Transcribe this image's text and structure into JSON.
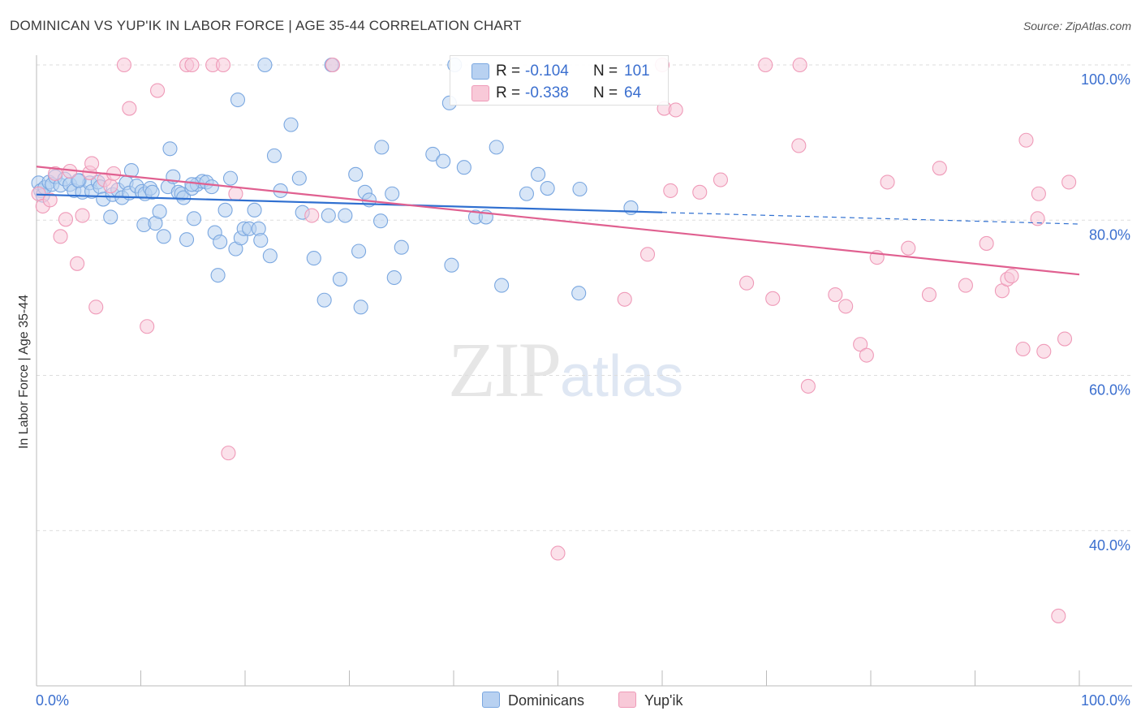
{
  "chart_data": {
    "type": "scatter",
    "title": "DOMINICAN VS YUP'IK IN LABOR FORCE | AGE 35-44 CORRELATION CHART",
    "source": "Source: ZipAtlas.com",
    "ylabel": "In Labor Force | Age 35-44",
    "xlabel": "",
    "xlim": [
      0,
      100
    ],
    "ylim": [
      20,
      100
    ],
    "x_tick_labels": {
      "left": "0.0%",
      "right": "100.0%"
    },
    "y_ticks": [
      {
        "value": 100,
        "label": "100.0%"
      },
      {
        "value": 80,
        "label": "80.0%"
      },
      {
        "value": 60,
        "label": "60.0%"
      },
      {
        "value": 40,
        "label": "40.0%"
      }
    ],
    "watermark": {
      "zip": "ZIP",
      "atlas": "atlas"
    },
    "legend": [
      {
        "r_label": "R =",
        "r_value": "-0.104",
        "n_label": "N =",
        "n_value": "101"
      },
      {
        "r_label": "R =",
        "r_value": "-0.338",
        "n_label": "N =",
        "n_value": "64"
      }
    ],
    "series": [
      {
        "name": "Dominicans",
        "color": "#7aa7e0",
        "fill": "#b8d1f1",
        "line_color": "#2f6fd0",
        "trend": {
          "x0": 0,
          "y0": 83.3,
          "x1": 60,
          "y1": 81.0,
          "dash_to_x": 100,
          "dash_to_y": 79.5
        },
        "points": [
          [
            0.2,
            84.8
          ],
          [
            0.4,
            83.8
          ],
          [
            0.6,
            83.2
          ],
          [
            0.8,
            84.2
          ],
          [
            1.2,
            84.9
          ],
          [
            1.5,
            84.6
          ],
          [
            1.8,
            85.6
          ],
          [
            2.3,
            84.5
          ],
          [
            2.7,
            85.3
          ],
          [
            3.2,
            84.6
          ],
          [
            3.6,
            83.8
          ],
          [
            4.1,
            85.1
          ],
          [
            4.4,
            83.6
          ],
          [
            5.1,
            84.8
          ],
          [
            5.3,
            83.7
          ],
          [
            5.9,
            84.9
          ],
          [
            6.1,
            84.3
          ],
          [
            6.4,
            82.7
          ],
          [
            7.1,
            80.4
          ],
          [
            7.3,
            83.3
          ],
          [
            7.8,
            83.9
          ],
          [
            8.2,
            82.9
          ],
          [
            8.6,
            84.8
          ],
          [
            8.9,
            83.5
          ],
          [
            9.1,
            86.4
          ],
          [
            9.6,
            84.4
          ],
          [
            10.1,
            83.7
          ],
          [
            10.4,
            83.4
          ],
          [
            10.3,
            79.4
          ],
          [
            10.9,
            84.1
          ],
          [
            11.1,
            83.6
          ],
          [
            11.4,
            79.6
          ],
          [
            11.8,
            81.1
          ],
          [
            12.2,
            77.9
          ],
          [
            12.6,
            84.3
          ],
          [
            12.8,
            89.2
          ],
          [
            13.1,
            85.6
          ],
          [
            13.6,
            83.6
          ],
          [
            13.9,
            83.4
          ],
          [
            14.1,
            82.9
          ],
          [
            14.4,
            77.5
          ],
          [
            14.9,
            84.1
          ],
          [
            15.1,
            80.2
          ],
          [
            15.4,
            84.6
          ],
          [
            15.9,
            85.0
          ],
          [
            16.3,
            84.9
          ],
          [
            16.8,
            84.3
          ],
          [
            17.1,
            78.4
          ],
          [
            17.4,
            72.9
          ],
          [
            17.6,
            77.2
          ],
          [
            18.1,
            81.3
          ],
          [
            18.6,
            85.4
          ],
          [
            19.1,
            76.3
          ],
          [
            19.3,
            95.5
          ],
          [
            19.6,
            77.7
          ],
          [
            19.9,
            78.9
          ],
          [
            20.4,
            78.9
          ],
          [
            20.9,
            81.3
          ],
          [
            21.3,
            78.9
          ],
          [
            21.5,
            77.4
          ],
          [
            21.9,
            100.0
          ],
          [
            22.4,
            75.4
          ],
          [
            22.8,
            88.3
          ],
          [
            23.4,
            83.8
          ],
          [
            24.4,
            92.3
          ],
          [
            25.2,
            85.4
          ],
          [
            25.5,
            81.0
          ],
          [
            26.6,
            75.1
          ],
          [
            27.6,
            69.7
          ],
          [
            28.0,
            80.6
          ],
          [
            28.3,
            100.0
          ],
          [
            29.1,
            72.4
          ],
          [
            29.6,
            80.6
          ],
          [
            30.6,
            85.9
          ],
          [
            30.9,
            76.0
          ],
          [
            31.1,
            68.8
          ],
          [
            31.5,
            83.6
          ],
          [
            31.9,
            82.6
          ],
          [
            33.0,
            79.9
          ],
          [
            33.1,
            89.4
          ],
          [
            34.1,
            83.4
          ],
          [
            34.3,
            72.6
          ],
          [
            35.0,
            76.5
          ],
          [
            38.0,
            88.5
          ],
          [
            39.0,
            87.6
          ],
          [
            39.6,
            95.1
          ],
          [
            39.8,
            74.2
          ],
          [
            40.1,
            100.0
          ],
          [
            41.0,
            86.8
          ],
          [
            42.1,
            80.4
          ],
          [
            43.1,
            80.4
          ],
          [
            44.1,
            89.4
          ],
          [
            44.6,
            71.6
          ],
          [
            47.0,
            83.4
          ],
          [
            48.1,
            85.9
          ],
          [
            49.0,
            84.1
          ],
          [
            52.0,
            70.6
          ],
          [
            52.1,
            84.0
          ],
          [
            57.0,
            81.6
          ],
          [
            4.0,
            85.1
          ],
          [
            14.9,
            84.6
          ]
        ]
      },
      {
        "name": "Yup'ik",
        "color": "#ef9ab8",
        "fill": "#f8c9d8",
        "line_color": "#e06090",
        "trend": {
          "x0": 0,
          "y0": 86.9,
          "x1": 100,
          "y1": 73.0
        },
        "points": [
          [
            0.2,
            83.4
          ],
          [
            0.6,
            81.8
          ],
          [
            1.3,
            82.6
          ],
          [
            1.8,
            86.0
          ],
          [
            2.3,
            77.9
          ],
          [
            2.8,
            80.1
          ],
          [
            3.2,
            86.3
          ],
          [
            3.9,
            74.4
          ],
          [
            4.4,
            80.6
          ],
          [
            5.1,
            86.1
          ],
          [
            5.3,
            87.3
          ],
          [
            5.7,
            68.8
          ],
          [
            6.5,
            85.2
          ],
          [
            7.1,
            84.4
          ],
          [
            7.4,
            86.0
          ],
          [
            8.4,
            100.0
          ],
          [
            8.9,
            94.4
          ],
          [
            10.6,
            66.3
          ],
          [
            11.6,
            96.7
          ],
          [
            14.4,
            100.0
          ],
          [
            14.9,
            100.0
          ],
          [
            16.9,
            100.0
          ],
          [
            17.9,
            100.0
          ],
          [
            18.4,
            50.0
          ],
          [
            19.1,
            83.4
          ],
          [
            26.4,
            80.6
          ],
          [
            28.4,
            100.0
          ],
          [
            50.0,
            37.1
          ],
          [
            56.4,
            69.8
          ],
          [
            58.6,
            75.6
          ],
          [
            60.0,
            100.0
          ],
          [
            60.2,
            94.4
          ],
          [
            60.8,
            83.8
          ],
          [
            61.3,
            94.2
          ],
          [
            63.6,
            83.6
          ],
          [
            65.6,
            85.2
          ],
          [
            68.1,
            71.9
          ],
          [
            69.9,
            100.0
          ],
          [
            70.6,
            69.9
          ],
          [
            73.2,
            100.0
          ],
          [
            73.1,
            89.6
          ],
          [
            74.0,
            58.6
          ],
          [
            76.6,
            70.4
          ],
          [
            77.6,
            68.9
          ],
          [
            79.0,
            64.0
          ],
          [
            79.6,
            62.6
          ],
          [
            80.6,
            75.2
          ],
          [
            81.6,
            84.9
          ],
          [
            83.6,
            76.4
          ],
          [
            85.6,
            70.4
          ],
          [
            86.6,
            86.7
          ],
          [
            89.1,
            71.6
          ],
          [
            91.1,
            77.0
          ],
          [
            92.6,
            70.9
          ],
          [
            93.1,
            72.4
          ],
          [
            93.5,
            72.8
          ],
          [
            94.6,
            63.4
          ],
          [
            94.9,
            90.3
          ],
          [
            96.0,
            80.2
          ],
          [
            96.1,
            83.4
          ],
          [
            96.6,
            63.1
          ],
          [
            98.0,
            29.0
          ],
          [
            98.6,
            64.7
          ],
          [
            99.0,
            84.9
          ]
        ]
      }
    ]
  }
}
